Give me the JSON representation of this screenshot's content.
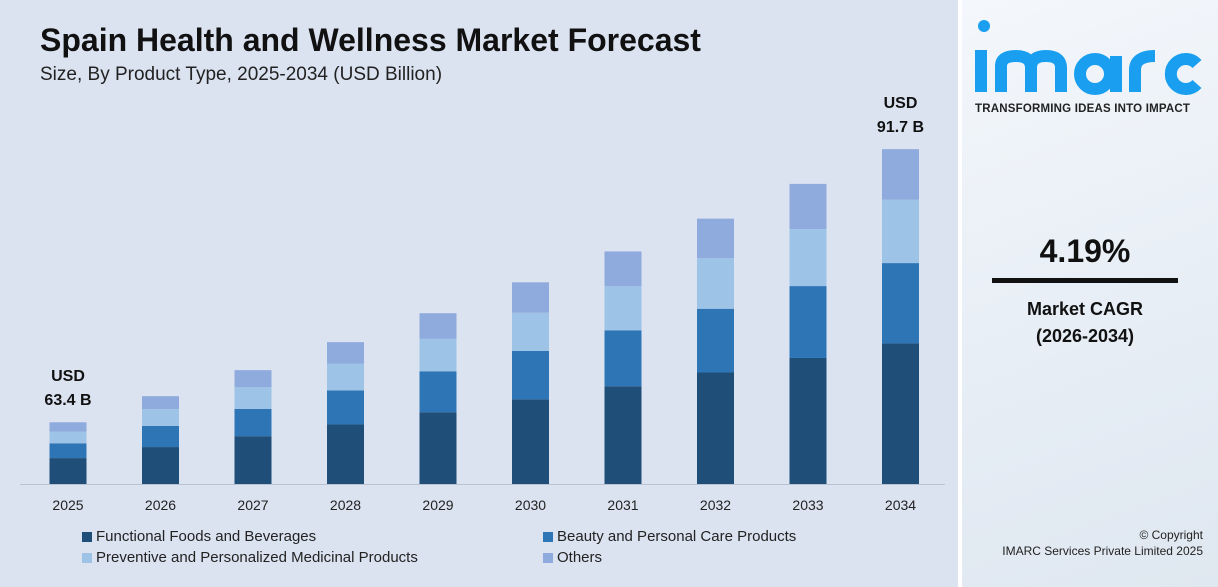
{
  "chart_data": {
    "type": "bar",
    "stacked": true,
    "title": "Spain Health and Wellness Market Forecast",
    "subtitle": "Size, By Product Type, 2025-2034 (USD Billion)",
    "categories": [
      "2025",
      "2026",
      "2027",
      "2028",
      "2029",
      "2030",
      "2031",
      "2032",
      "2033",
      "2034"
    ],
    "totals": [
      63.4,
      66.1,
      68.8,
      71.7,
      74.7,
      77.9,
      81.1,
      84.5,
      88.1,
      91.7
    ],
    "series": [
      {
        "name": "Functional Foods and Beverages",
        "color": "#1f4e79",
        "values": [
          26.6,
          27.8,
          28.9,
          30.1,
          31.4,
          32.7,
          34.1,
          35.5,
          37.0,
          38.5
        ]
      },
      {
        "name": "Beauty and Personal Care Products",
        "color": "#2e75b6",
        "values": [
          15.2,
          15.9,
          16.5,
          17.2,
          17.9,
          18.7,
          19.5,
          20.3,
          21.1,
          22.0
        ]
      },
      {
        "name": "Preventive and Personalized Medicinal Products",
        "color": "#9dc3e6",
        "values": [
          12.0,
          12.6,
          13.1,
          13.6,
          14.2,
          14.8,
          15.4,
          16.1,
          16.7,
          17.4
        ]
      },
      {
        "name": "Others",
        "color": "#8faadc",
        "values": [
          9.6,
          9.8,
          10.3,
          10.8,
          11.2,
          11.7,
          12.1,
          12.6,
          13.3,
          13.8
        ]
      }
    ],
    "annotations": [
      {
        "category": "2025",
        "line1": "USD",
        "line2": "63.4 B"
      },
      {
        "category": "2034",
        "line1": "USD",
        "line2": "91.7 B"
      }
    ],
    "legend_position": "bottom",
    "grid": false
  },
  "brand": {
    "name": "imarc",
    "tagline": "TRANSFORMING IDEAS INTO IMPACT",
    "color": "#1a9ff0"
  },
  "cagr": {
    "value": "4.19%",
    "label": "Market CAGR",
    "period": "(2026-2034)"
  },
  "copyright": {
    "line1": "© Copyright",
    "line2": "IMARC Services Private Limited 2025"
  }
}
